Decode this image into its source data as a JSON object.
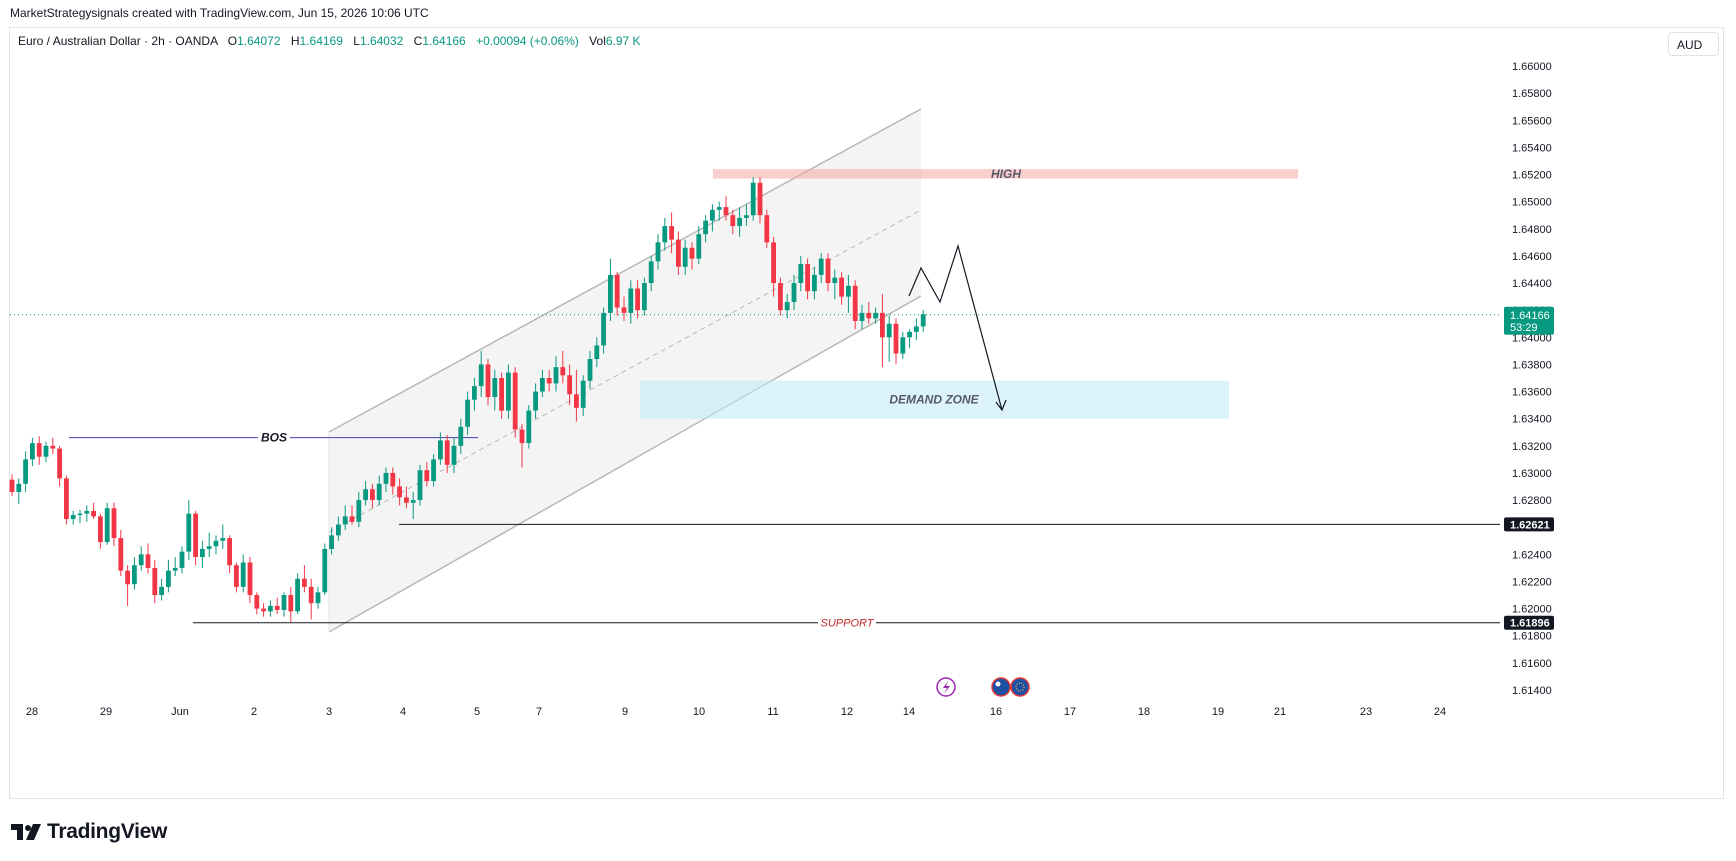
{
  "credit": "MarketStrategysignals created with TradingView.com, Jun 15, 2026 10:06 UTC",
  "legend": {
    "symbol": "Euro / Australian Dollar · 2h · OANDA",
    "open_label": "O",
    "open": "1.64072",
    "high_label": "H",
    "high": "1.64169",
    "low_label": "L",
    "low": "1.64032",
    "close_label": "C",
    "close": "1.64166",
    "change": "+0.00094 (+0.06%)",
    "vol_label": "Vol",
    "vol": "6.97 K"
  },
  "currency_button": "AUD",
  "brand": "TradingView",
  "chart_data": {
    "type": "candlestick",
    "symbol": "EURAUD",
    "timeframe": "2h",
    "y_axis_ticks": [
      "1.66000",
      "1.65800",
      "1.65600",
      "1.65400",
      "1.65200",
      "1.65000",
      "1.64800",
      "1.64600",
      "1.64400",
      "1.64200",
      "1.64000",
      "1.63800",
      "1.63600",
      "1.63400",
      "1.63200",
      "1.63000",
      "1.62800",
      "1.62600",
      "1.62400",
      "1.62200",
      "1.62000",
      "1.61800",
      "1.61600",
      "1.61400"
    ],
    "ylim": [
      1.6127,
      1.6617
    ],
    "x_axis_ticks": [
      {
        "label": "28",
        "day": 0
      },
      {
        "label": "29",
        "day": 1
      },
      {
        "label": "Jun",
        "day": 2
      },
      {
        "label": "2",
        "day": 3
      },
      {
        "label": "3",
        "day": 4
      },
      {
        "label": "4",
        "day": 5
      },
      {
        "label": "5",
        "day": 6
      },
      {
        "label": "7",
        "day": 7
      },
      {
        "label": "9",
        "day": 8
      },
      {
        "label": "10",
        "day": 9
      },
      {
        "label": "11",
        "day": 10
      },
      {
        "label": "12",
        "day": 11
      },
      {
        "label": "14",
        "day": 12
      },
      {
        "label": "16",
        "day": 13
      },
      {
        "label": "17",
        "day": 14
      },
      {
        "label": "18",
        "day": 15
      },
      {
        "label": "19",
        "day": 16
      },
      {
        "label": "21",
        "day": 17
      },
      {
        "label": "23",
        "day": 18
      },
      {
        "label": "24",
        "day": 19
      }
    ],
    "candles": [
      {
        "o": 1.6295,
        "h": 1.6299,
        "l": 1.6283,
        "c": 1.6286
      },
      {
        "o": 1.6286,
        "h": 1.6296,
        "l": 1.6277,
        "c": 1.6292
      },
      {
        "o": 1.6292,
        "h": 1.6316,
        "l": 1.6286,
        "c": 1.631
      },
      {
        "o": 1.631,
        "h": 1.6326,
        "l": 1.6305,
        "c": 1.6322
      },
      {
        "o": 1.6322,
        "h": 1.6327,
        "l": 1.6306,
        "c": 1.6312
      },
      {
        "o": 1.6312,
        "h": 1.6323,
        "l": 1.6308,
        "c": 1.632
      },
      {
        "o": 1.632,
        "h": 1.6326,
        "l": 1.6314,
        "c": 1.6318
      },
      {
        "o": 1.6318,
        "h": 1.632,
        "l": 1.629,
        "c": 1.6296
      },
      {
        "o": 1.6296,
        "h": 1.6298,
        "l": 1.6262,
        "c": 1.6266
      },
      {
        "o": 1.6266,
        "h": 1.6272,
        "l": 1.6262,
        "c": 1.6269
      },
      {
        "o": 1.6269,
        "h": 1.6273,
        "l": 1.6263,
        "c": 1.627
      },
      {
        "o": 1.627,
        "h": 1.6276,
        "l": 1.6264,
        "c": 1.6272
      },
      {
        "o": 1.6272,
        "h": 1.6278,
        "l": 1.6266,
        "c": 1.6268
      },
      {
        "o": 1.6268,
        "h": 1.627,
        "l": 1.6244,
        "c": 1.6249
      },
      {
        "o": 1.6249,
        "h": 1.6278,
        "l": 1.6247,
        "c": 1.6274
      },
      {
        "o": 1.6274,
        "h": 1.6278,
        "l": 1.6246,
        "c": 1.6252
      },
      {
        "o": 1.6252,
        "h": 1.6258,
        "l": 1.6224,
        "c": 1.6228
      },
      {
        "o": 1.6228,
        "h": 1.6232,
        "l": 1.6202,
        "c": 1.6218
      },
      {
        "o": 1.6218,
        "h": 1.6238,
        "l": 1.6214,
        "c": 1.6232
      },
      {
        "o": 1.6232,
        "h": 1.6246,
        "l": 1.6228,
        "c": 1.624
      },
      {
        "o": 1.624,
        "h": 1.6248,
        "l": 1.6226,
        "c": 1.623
      },
      {
        "o": 1.623,
        "h": 1.6236,
        "l": 1.6204,
        "c": 1.621
      },
      {
        "o": 1.621,
        "h": 1.6222,
        "l": 1.6206,
        "c": 1.6216
      },
      {
        "o": 1.6216,
        "h": 1.6236,
        "l": 1.6212,
        "c": 1.6228
      },
      {
        "o": 1.6228,
        "h": 1.6238,
        "l": 1.6224,
        "c": 1.623
      },
      {
        "o": 1.623,
        "h": 1.6246,
        "l": 1.6226,
        "c": 1.6242
      },
      {
        "o": 1.6242,
        "h": 1.628,
        "l": 1.6236,
        "c": 1.627
      },
      {
        "o": 1.627,
        "h": 1.6272,
        "l": 1.6232,
        "c": 1.6238
      },
      {
        "o": 1.6238,
        "h": 1.625,
        "l": 1.623,
        "c": 1.6244
      },
      {
        "o": 1.6244,
        "h": 1.6256,
        "l": 1.6238,
        "c": 1.6246
      },
      {
        "o": 1.6246,
        "h": 1.6254,
        "l": 1.624,
        "c": 1.625
      },
      {
        "o": 1.625,
        "h": 1.6262,
        "l": 1.6244,
        "c": 1.6252
      },
      {
        "o": 1.6252,
        "h": 1.6254,
        "l": 1.6226,
        "c": 1.6232
      },
      {
        "o": 1.6232,
        "h": 1.6234,
        "l": 1.6212,
        "c": 1.6216
      },
      {
        "o": 1.6216,
        "h": 1.624,
        "l": 1.6212,
        "c": 1.6234
      },
      {
        "o": 1.6234,
        "h": 1.6238,
        "l": 1.6204,
        "c": 1.621
      },
      {
        "o": 1.621,
        "h": 1.6212,
        "l": 1.6196,
        "c": 1.62
      },
      {
        "o": 1.62,
        "h": 1.6204,
        "l": 1.6194,
        "c": 1.6198
      },
      {
        "o": 1.6198,
        "h": 1.6206,
        "l": 1.6194,
        "c": 1.6202
      },
      {
        "o": 1.6202,
        "h": 1.6208,
        "l": 1.6196,
        "c": 1.6199
      },
      {
        "o": 1.6199,
        "h": 1.6212,
        "l": 1.6194,
        "c": 1.621
      },
      {
        "o": 1.621,
        "h": 1.6216,
        "l": 1.619,
        "c": 1.6198
      },
      {
        "o": 1.6198,
        "h": 1.6226,
        "l": 1.6196,
        "c": 1.6222
      },
      {
        "o": 1.6222,
        "h": 1.6232,
        "l": 1.6212,
        "c": 1.6216
      },
      {
        "o": 1.6216,
        "h": 1.6222,
        "l": 1.6192,
        "c": 1.6204
      },
      {
        "o": 1.6204,
        "h": 1.6216,
        "l": 1.62,
        "c": 1.6212
      },
      {
        "o": 1.6212,
        "h": 1.6248,
        "l": 1.621,
        "c": 1.6244
      },
      {
        "o": 1.6244,
        "h": 1.626,
        "l": 1.624,
        "c": 1.6254
      },
      {
        "o": 1.6254,
        "h": 1.6268,
        "l": 1.625,
        "c": 1.6262
      },
      {
        "o": 1.6262,
        "h": 1.6276,
        "l": 1.6258,
        "c": 1.6268
      },
      {
        "o": 1.6268,
        "h": 1.6276,
        "l": 1.6262,
        "c": 1.6264
      },
      {
        "o": 1.6264,
        "h": 1.6286,
        "l": 1.626,
        "c": 1.628
      },
      {
        "o": 1.628,
        "h": 1.6294,
        "l": 1.6276,
        "c": 1.6288
      },
      {
        "o": 1.6288,
        "h": 1.6292,
        "l": 1.6274,
        "c": 1.628
      },
      {
        "o": 1.628,
        "h": 1.6298,
        "l": 1.6276,
        "c": 1.6292
      },
      {
        "o": 1.6292,
        "h": 1.6304,
        "l": 1.6286,
        "c": 1.63
      },
      {
        "o": 1.63,
        "h": 1.6304,
        "l": 1.6284,
        "c": 1.629
      },
      {
        "o": 1.629,
        "h": 1.6296,
        "l": 1.6276,
        "c": 1.6282
      },
      {
        "o": 1.6282,
        "h": 1.629,
        "l": 1.6274,
        "c": 1.6278
      },
      {
        "o": 1.6278,
        "h": 1.6286,
        "l": 1.6266,
        "c": 1.628
      },
      {
        "o": 1.628,
        "h": 1.6306,
        "l": 1.6276,
        "c": 1.6302
      },
      {
        "o": 1.6302,
        "h": 1.6308,
        "l": 1.629,
        "c": 1.6294
      },
      {
        "o": 1.6294,
        "h": 1.6314,
        "l": 1.629,
        "c": 1.631
      },
      {
        "o": 1.631,
        "h": 1.633,
        "l": 1.6306,
        "c": 1.6324
      },
      {
        "o": 1.6324,
        "h": 1.6328,
        "l": 1.63,
        "c": 1.6306
      },
      {
        "o": 1.6306,
        "h": 1.6326,
        "l": 1.63,
        "c": 1.632
      },
      {
        "o": 1.632,
        "h": 1.634,
        "l": 1.6314,
        "c": 1.6334
      },
      {
        "o": 1.6334,
        "h": 1.636,
        "l": 1.6328,
        "c": 1.6354
      },
      {
        "o": 1.6354,
        "h": 1.637,
        "l": 1.6346,
        "c": 1.6364
      },
      {
        "o": 1.6364,
        "h": 1.639,
        "l": 1.6356,
        "c": 1.638
      },
      {
        "o": 1.638,
        "h": 1.6384,
        "l": 1.635,
        "c": 1.6356
      },
      {
        "o": 1.6356,
        "h": 1.6376,
        "l": 1.6346,
        "c": 1.637
      },
      {
        "o": 1.637,
        "h": 1.6374,
        "l": 1.634,
        "c": 1.6346
      },
      {
        "o": 1.6346,
        "h": 1.638,
        "l": 1.634,
        "c": 1.6374
      },
      {
        "o": 1.6374,
        "h": 1.6378,
        "l": 1.6326,
        "c": 1.6332
      },
      {
        "o": 1.6332,
        "h": 1.6336,
        "l": 1.6304,
        "c": 1.6322
      },
      {
        "o": 1.6322,
        "h": 1.635,
        "l": 1.6318,
        "c": 1.6346
      },
      {
        "o": 1.6346,
        "h": 1.6366,
        "l": 1.634,
        "c": 1.636
      },
      {
        "o": 1.636,
        "h": 1.6376,
        "l": 1.6356,
        "c": 1.637
      },
      {
        "o": 1.637,
        "h": 1.6376,
        "l": 1.636,
        "c": 1.6366
      },
      {
        "o": 1.6366,
        "h": 1.6386,
        "l": 1.636,
        "c": 1.6378
      },
      {
        "o": 1.6378,
        "h": 1.639,
        "l": 1.6366,
        "c": 1.6372
      },
      {
        "o": 1.6372,
        "h": 1.638,
        "l": 1.635,
        "c": 1.6358
      },
      {
        "o": 1.6358,
        "h": 1.6376,
        "l": 1.6338,
        "c": 1.6348
      },
      {
        "o": 1.6348,
        "h": 1.6372,
        "l": 1.6342,
        "c": 1.6368
      },
      {
        "o": 1.6368,
        "h": 1.639,
        "l": 1.6362,
        "c": 1.6384
      },
      {
        "o": 1.6384,
        "h": 1.64,
        "l": 1.6378,
        "c": 1.6394
      },
      {
        "o": 1.6394,
        "h": 1.6422,
        "l": 1.6388,
        "c": 1.6418
      },
      {
        "o": 1.6418,
        "h": 1.6458,
        "l": 1.6412,
        "c": 1.6446
      },
      {
        "o": 1.6446,
        "h": 1.6448,
        "l": 1.6416,
        "c": 1.6422
      },
      {
        "o": 1.6422,
        "h": 1.643,
        "l": 1.6412,
        "c": 1.6418
      },
      {
        "o": 1.6418,
        "h": 1.6442,
        "l": 1.641,
        "c": 1.6436
      },
      {
        "o": 1.6436,
        "h": 1.6442,
        "l": 1.6414,
        "c": 1.642
      },
      {
        "o": 1.642,
        "h": 1.6444,
        "l": 1.6416,
        "c": 1.644
      },
      {
        "o": 1.644,
        "h": 1.646,
        "l": 1.6434,
        "c": 1.6456
      },
      {
        "o": 1.6456,
        "h": 1.6476,
        "l": 1.645,
        "c": 1.647
      },
      {
        "o": 1.647,
        "h": 1.6488,
        "l": 1.6464,
        "c": 1.6482
      },
      {
        "o": 1.6482,
        "h": 1.6492,
        "l": 1.6462,
        "c": 1.6472
      },
      {
        "o": 1.6472,
        "h": 1.6478,
        "l": 1.6446,
        "c": 1.6452
      },
      {
        "o": 1.6452,
        "h": 1.6472,
        "l": 1.6446,
        "c": 1.6466
      },
      {
        "o": 1.6466,
        "h": 1.647,
        "l": 1.645,
        "c": 1.6458
      },
      {
        "o": 1.6458,
        "h": 1.6482,
        "l": 1.6454,
        "c": 1.6476
      },
      {
        "o": 1.6476,
        "h": 1.649,
        "l": 1.647,
        "c": 1.6486
      },
      {
        "o": 1.6486,
        "h": 1.6498,
        "l": 1.6478,
        "c": 1.6494
      },
      {
        "o": 1.6494,
        "h": 1.65,
        "l": 1.6486,
        "c": 1.6496
      },
      {
        "o": 1.6496,
        "h": 1.6504,
        "l": 1.6486,
        "c": 1.649
      },
      {
        "o": 1.649,
        "h": 1.6494,
        "l": 1.6476,
        "c": 1.6482
      },
      {
        "o": 1.6482,
        "h": 1.6496,
        "l": 1.6474,
        "c": 1.6488
      },
      {
        "o": 1.6488,
        "h": 1.6498,
        "l": 1.6482,
        "c": 1.649
      },
      {
        "o": 1.649,
        "h": 1.6518,
        "l": 1.6486,
        "c": 1.6514
      },
      {
        "o": 1.6514,
        "h": 1.6518,
        "l": 1.6484,
        "c": 1.649
      },
      {
        "o": 1.649,
        "h": 1.6494,
        "l": 1.6466,
        "c": 1.647
      },
      {
        "o": 1.647,
        "h": 1.6474,
        "l": 1.643,
        "c": 1.644
      },
      {
        "o": 1.644,
        "h": 1.6444,
        "l": 1.6416,
        "c": 1.642
      },
      {
        "o": 1.642,
        "h": 1.6432,
        "l": 1.6414,
        "c": 1.6426
      },
      {
        "o": 1.6426,
        "h": 1.6446,
        "l": 1.642,
        "c": 1.644
      },
      {
        "o": 1.644,
        "h": 1.646,
        "l": 1.6434,
        "c": 1.6454
      },
      {
        "o": 1.6454,
        "h": 1.6458,
        "l": 1.6428,
        "c": 1.6434
      },
      {
        "o": 1.6434,
        "h": 1.6452,
        "l": 1.6428,
        "c": 1.6446
      },
      {
        "o": 1.6446,
        "h": 1.6462,
        "l": 1.644,
        "c": 1.6458
      },
      {
        "o": 1.6458,
        "h": 1.6462,
        "l": 1.6434,
        "c": 1.644
      },
      {
        "o": 1.644,
        "h": 1.645,
        "l": 1.6428,
        "c": 1.6444
      },
      {
        "o": 1.6444,
        "h": 1.6448,
        "l": 1.6424,
        "c": 1.643
      },
      {
        "o": 1.643,
        "h": 1.6446,
        "l": 1.6418,
        "c": 1.6438
      },
      {
        "o": 1.6438,
        "h": 1.6442,
        "l": 1.6406,
        "c": 1.6412
      },
      {
        "o": 1.6412,
        "h": 1.6424,
        "l": 1.6406,
        "c": 1.6418
      },
      {
        "o": 1.6418,
        "h": 1.6426,
        "l": 1.641,
        "c": 1.6414
      },
      {
        "o": 1.6414,
        "h": 1.6422,
        "l": 1.641,
        "c": 1.6418
      },
      {
        "o": 1.6418,
        "h": 1.6432,
        "l": 1.6378,
        "c": 1.64
      },
      {
        "o": 1.64,
        "h": 1.6416,
        "l": 1.6382,
        "c": 1.641
      },
      {
        "o": 1.641,
        "h": 1.6414,
        "l": 1.638,
        "c": 1.6388
      },
      {
        "o": 1.6388,
        "h": 1.6404,
        "l": 1.6384,
        "c": 1.64
      },
      {
        "o": 1.64,
        "h": 1.6406,
        "l": 1.6392,
        "c": 1.6404
      },
      {
        "o": 1.6404,
        "h": 1.6414,
        "l": 1.6398,
        "c": 1.6408
      },
      {
        "o": 1.6408,
        "h": 1.642,
        "l": 1.6404,
        "c": 1.6417
      }
    ],
    "current_price": {
      "value": 1.64166,
      "label": "1.64166",
      "countdown": "53:29"
    },
    "levels": [
      {
        "name": "level",
        "value": 1.62621,
        "label": "1.62621"
      },
      {
        "name": "support",
        "value": 1.61896,
        "label": "1.61896",
        "text": "SUPPORT"
      }
    ],
    "zones": [
      {
        "text": "HIGH",
        "from": 1.6517,
        "to": 1.6524,
        "color": "#f7a6a6"
      },
      {
        "text": "DEMAND ZONE",
        "from": 1.634,
        "to": 1.6368,
        "color": "#bfeaf5"
      }
    ],
    "annotations": [
      {
        "text": "BOS",
        "price": 1.6326
      }
    ],
    "colors": {
      "up": "#089981",
      "down": "#f23645",
      "line": "#131722",
      "current": "#089981"
    }
  }
}
